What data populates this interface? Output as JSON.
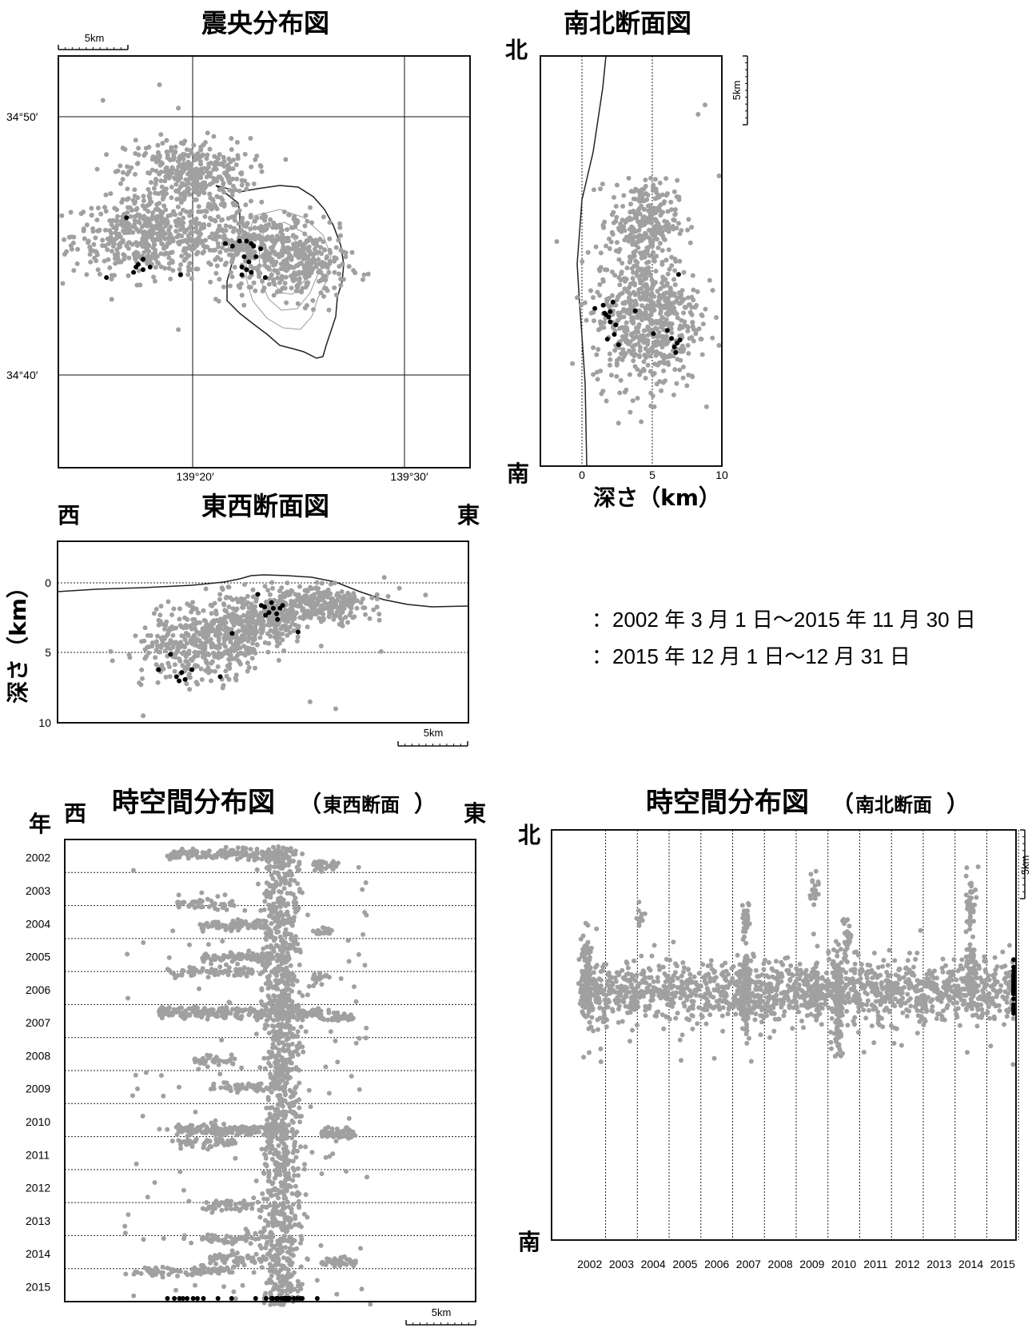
{
  "chart_data": [
    {
      "type": "scatter",
      "title": "震央分布図",
      "xticks": [
        "139°20′",
        "139°30′"
      ],
      "yticks": [
        "34°50′",
        "34°40′"
      ],
      "scalebar": "5km",
      "series": [
        {
          "name": "2002年3月1日～2015年11月30日",
          "color": "#a0a0a0",
          "clusters": [
            {
              "x": 139.3333,
              "y": 34.7517,
              "sx": 0.028,
              "sy": 0.012,
              "n": 520
            },
            {
              "x": 139.3583,
              "y": 34.7917,
              "sx": 0.022,
              "sy": 0.011,
              "n": 360
            },
            {
              "x": 139.4083,
              "y": 34.745,
              "sx": 0.022,
              "sy": 0.012,
              "n": 320
            },
            {
              "x": 139.4417,
              "y": 34.7317,
              "sx": 0.015,
              "sy": 0.011,
              "n": 220
            }
          ]
        },
        {
          "name": "2015年12月1日～12月31日",
          "color": "#000000",
          "points": [
            [
              139.3008,
              34.725
            ],
            [
              139.315,
              34.7633
            ],
            [
              139.3217,
              34.7317
            ],
            [
              139.3233,
              34.7333
            ],
            [
              139.3267,
              34.73
            ],
            [
              139.32,
              34.7283
            ],
            [
              139.3267,
              34.7367
            ],
            [
              139.3317,
              34.7317
            ],
            [
              139.3533,
              34.7267
            ],
            [
              139.385,
              34.7467
            ],
            [
              139.39,
              34.745
            ],
            [
              139.395,
              34.7483
            ],
            [
              139.4,
              34.7483
            ],
            [
              139.4033,
              34.7467
            ],
            [
              139.405,
              34.745
            ],
            [
              139.3983,
              34.7383
            ],
            [
              139.4017,
              34.735
            ],
            [
              139.3967,
              34.7317
            ],
            [
              139.4,
              34.73
            ],
            [
              139.3967,
              34.7267
            ],
            [
              139.4033,
              34.7283
            ],
            [
              139.4133,
              34.725
            ],
            [
              139.41,
              34.7433
            ],
            [
              139.4067,
              34.7383
            ]
          ]
        }
      ],
      "xlim": [
        139.2667,
        139.5583
      ],
      "ylim": [
        34.6033,
        34.8667
      ]
    },
    {
      "type": "scatter",
      "title": "南北断面図",
      "top_label": "北",
      "bottom_label": "南",
      "xlabel": "深さ（km）",
      "xticks": [
        0,
        5,
        10
      ],
      "scalebar": "5km",
      "xlim": [
        -3,
        10
      ],
      "series": [
        {
          "name": "2002年3月1日～2015年11月30日",
          "color": "#a0a0a0",
          "clusters": [
            {
              "x": 4.4,
              "y": 31,
              "sx": 1.2,
              "sy": 2.6,
              "n": 260
            },
            {
              "x": 4.6,
              "y": 19,
              "sx": 1.9,
              "sy": 4.5,
              "n": 620
            }
          ]
        },
        {
          "name": "2015年12月1日～12月31日",
          "color": "#000000",
          "points": [
            [
              0.9,
              20
            ],
            [
              1.5,
              20.4
            ],
            [
              1.7,
              19.2
            ],
            [
              2.0,
              18.3
            ],
            [
              2.2,
              20.8
            ],
            [
              1.8,
              16.1
            ],
            [
              2.3,
              16.7
            ],
            [
              2.6,
              15.4
            ],
            [
              3.8,
              19.7
            ],
            [
              5.1,
              16.8
            ],
            [
              6.1,
              17.2
            ],
            [
              6.4,
              16.2
            ],
            [
              6.8,
              15.6
            ],
            [
              7.0,
              16.0
            ],
            [
              6.6,
              15.1
            ],
            [
              6.7,
              14.4
            ],
            [
              6.9,
              24.3
            ],
            [
              2.0,
              19.6
            ],
            [
              1.9,
              18.9
            ],
            [
              1.6,
              19.4
            ],
            [
              2.4,
              17.9
            ]
          ]
        }
      ],
      "ylim": [
        0,
        52
      ]
    },
    {
      "type": "scatter",
      "title": "東西断面図",
      "left_label": "西",
      "right_label": "東",
      "ylabel": "深さ（km）",
      "yticks": [
        0,
        5,
        10
      ],
      "scalebar": "5km",
      "xlim": [
        0,
        48
      ],
      "ylim": [
        -3,
        10
      ],
      "series": [
        {
          "name": "2002年3月1日～2015年11月30日",
          "color": "#a0a0a0",
          "clusters": [
            {
              "x": 17,
              "y": 4.4,
              "sx": 3.6,
              "sy": 1.3,
              "n": 420
            },
            {
              "x": 24,
              "y": 2.4,
              "sx": 3.0,
              "sy": 0.9,
              "n": 320
            },
            {
              "x": 31,
              "y": 1.4,
              "sx": 2.8,
              "sy": 0.6,
              "n": 260
            }
          ]
        },
        {
          "name": "2015年12月1日～12月31日",
          "color": "#000000",
          "points": [
            [
              11.8,
              6.2
            ],
            [
              13.2,
              5.1
            ],
            [
              13.9,
              6.7
            ],
            [
              14.2,
              7.0
            ],
            [
              14.5,
              6.4
            ],
            [
              14.9,
              6.9
            ],
            [
              15.7,
              6.2
            ],
            [
              19.0,
              6.7
            ],
            [
              20.4,
              3.6
            ],
            [
              23.4,
              0.8
            ],
            [
              23.8,
              1.6
            ],
            [
              24.2,
              1.7
            ],
            [
              24.7,
              2.1
            ],
            [
              25.2,
              1.8
            ],
            [
              25.6,
              2.2
            ],
            [
              26.0,
              1.8
            ],
            [
              26.3,
              1.6
            ],
            [
              25.0,
              1.4
            ],
            [
              24.3,
              2.3
            ],
            [
              25.7,
              2.6
            ],
            [
              28.1,
              3.5
            ]
          ]
        }
      ]
    },
    {
      "type": "scatter",
      "title": "時空間分布図",
      "subtitle": "東西断面",
      "left_label": "西",
      "right_label": "東",
      "ylabel": "年",
      "yticks": [
        "2002",
        "2003",
        "2004",
        "2005",
        "2006",
        "2007",
        "2008",
        "2009",
        "2010",
        "2011",
        "2012",
        "2013",
        "2014",
        "2015"
      ],
      "scalebar": "5km",
      "ylim": [
        2002,
        2016
      ],
      "series": [
        {
          "name": "2002年3月1日～2015年11月30日",
          "color": "#a0a0a0",
          "x_center": 25.3,
          "x_spread": 1.1
        },
        {
          "name": "2015年12月1日～12月31日",
          "color": "#000000",
          "x_center": 25.5,
          "x_spread": 1.2
        }
      ]
    },
    {
      "type": "scatter",
      "title": "時空間分布図",
      "subtitle": "南北断面",
      "top_label": "北",
      "bottom_label": "南",
      "xticks": [
        "2002",
        "2003",
        "2004",
        "2005",
        "2006",
        "2007",
        "2008",
        "2009",
        "2010",
        "2011",
        "2012",
        "2013",
        "2014",
        "2015"
      ],
      "scalebar": "5km",
      "xlim": [
        2001.3,
        2015.92
      ],
      "series": [
        {
          "name": "2002年3月1日～2015年11月30日",
          "color": "#a0a0a0",
          "y_center": 20.5,
          "y_spread": 1.8
        },
        {
          "name": "2015年12月1日～12月31日",
          "color": "#000000",
          "y_center": 20.5,
          "y_spread": 1.5
        }
      ]
    }
  ],
  "legend": [
    {
      "label": "：2002 年 3 月 1 日～2015 年 11 月 30 日",
      "color": "#a0a0a0"
    },
    {
      "label": "：2015 年 12 月 1 日～12 月 31 日",
      "color": "#000000"
    }
  ]
}
